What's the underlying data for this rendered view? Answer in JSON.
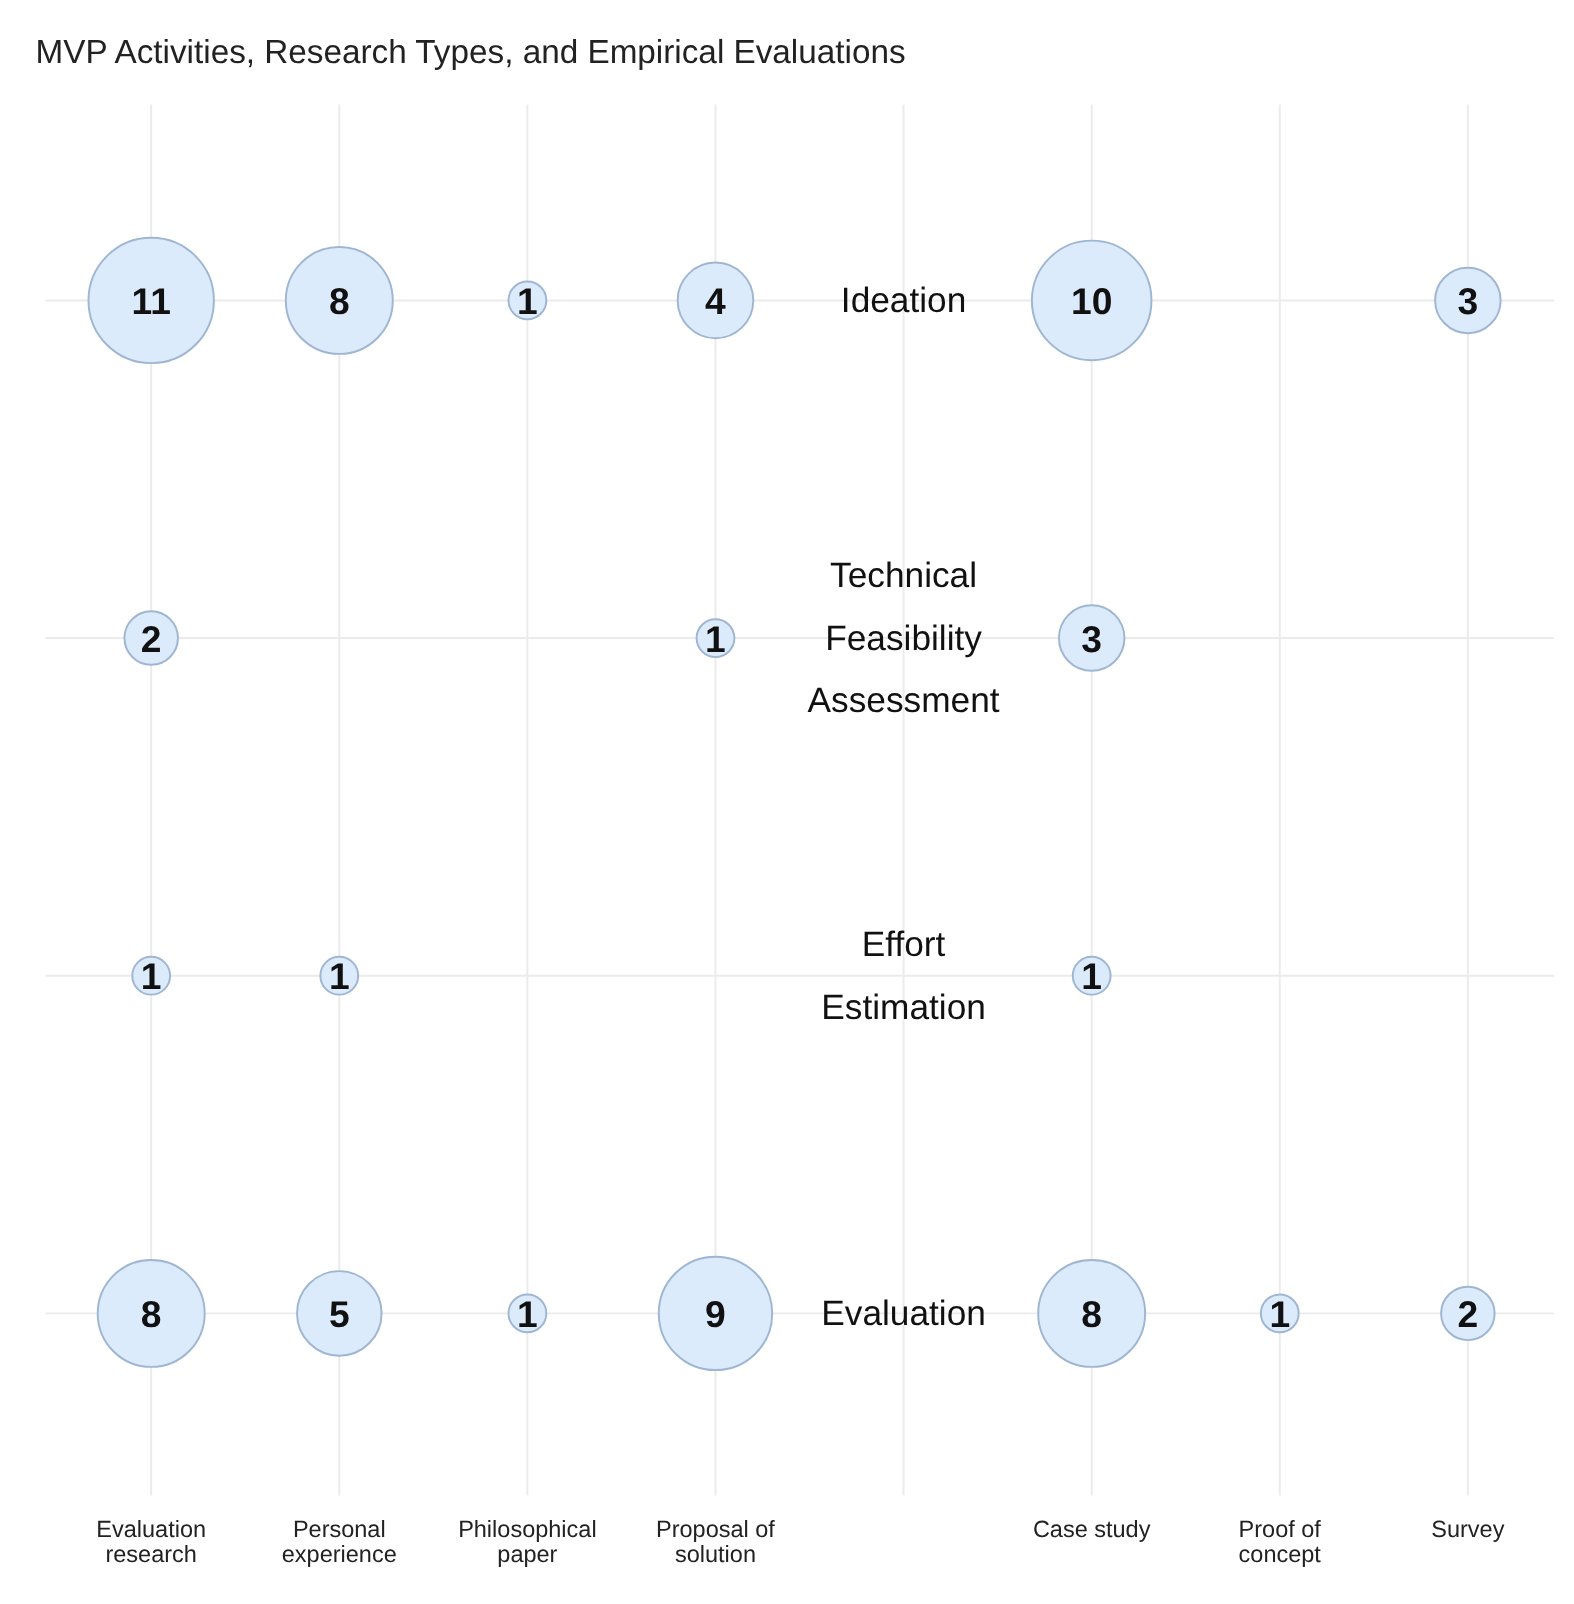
{
  "chart_data": {
    "type": "heatmap",
    "title": "MVP Activities, Research Types, and Empirical Evaluations",
    "categories": [
      "Evaluation research",
      "Personal experience",
      "Philosophical paper",
      "Proposal of solution",
      null,
      "Case study",
      "Proof of concept",
      "Survey"
    ],
    "y_categories": [
      "Ideation",
      "Technical Feasibility Assessment",
      "Effort Estimation",
      "Evaluation"
    ],
    "cells": [
      [
        11,
        8,
        1,
        4,
        null,
        10,
        null,
        3
      ],
      [
        2,
        null,
        null,
        1,
        null,
        3,
        null,
        null
      ],
      [
        1,
        1,
        null,
        null,
        null,
        1,
        null,
        null
      ],
      [
        8,
        5,
        1,
        9,
        null,
        8,
        1,
        2
      ]
    ],
    "color": "#dcebfc",
    "data_labels": true,
    "grid": true
  }
}
